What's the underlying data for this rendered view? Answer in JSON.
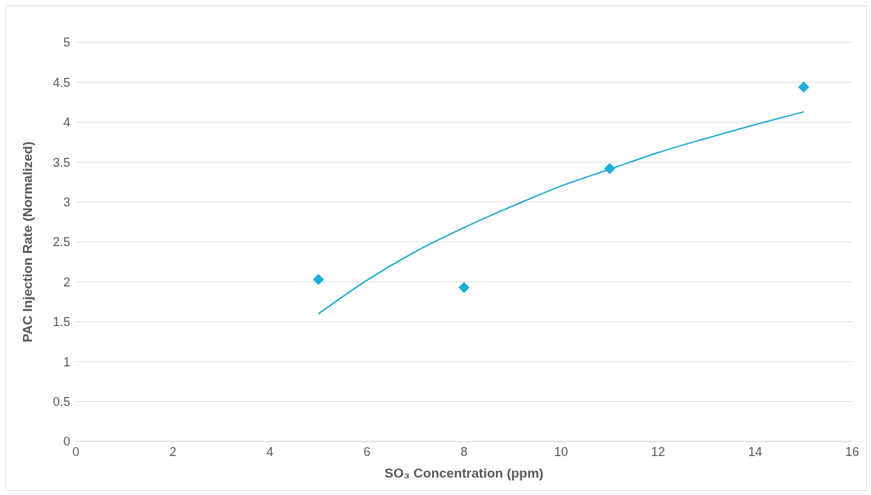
{
  "chart_data": {
    "type": "scatter",
    "xlabel": "SO₃ Concentration (ppm)",
    "ylabel": "PAC Injection Rate (Normalized)",
    "xlim": [
      0,
      16
    ],
    "xticks": [
      0,
      2,
      4,
      6,
      8,
      10,
      12,
      14,
      16
    ],
    "ylim": [
      0,
      5
    ],
    "yticks": [
      0,
      0.5,
      1,
      1.5,
      2,
      2.5,
      3,
      3.5,
      4,
      4.5,
      5
    ],
    "grid": "y",
    "series": [
      {
        "marker": "diamond",
        "color": "#1aafd9",
        "x": [
          5,
          8,
          11,
          15
        ],
        "values": [
          2.03,
          1.93,
          3.42,
          4.44
        ]
      },
      {
        "type": "line",
        "marker": "none",
        "line_style": "solid",
        "color": "#17a8d6",
        "x": [
          5,
          6,
          7,
          8,
          9,
          10,
          11,
          12,
          13,
          14,
          15
        ],
        "values": [
          1.6,
          2.02,
          2.38,
          2.68,
          2.95,
          3.2,
          3.41,
          3.62,
          3.8,
          3.97,
          4.13
        ]
      }
    ]
  }
}
